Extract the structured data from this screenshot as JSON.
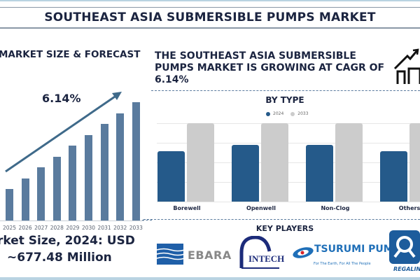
{
  "header": {
    "title": "SOUTHEAST ASIA SUBMERSIBLE PUMPS MARKET"
  },
  "left_panel": {
    "heading": "MARKET SIZE & FORECAST",
    "cagr_label": "6.14%",
    "market_size_line1": "rket Size, 2024: USD",
    "market_size_line2": "~677.48 Million",
    "colors": {
      "bar": "#5a7b9e",
      "arrow": "#3f6a8a"
    }
  },
  "right_panel": {
    "heading": "THE SOUTHEAST ASIA SUBMERSIBLE PUMPS MARKET IS GROWING AT CAGR OF 6.14%",
    "icon": "house-growth-icon",
    "by_type_title": "BY TYPE",
    "legend": [
      {
        "label": "2024",
        "color": "#255a8a"
      },
      {
        "label": "2033",
        "color": "#cccccc"
      }
    ],
    "key_players_title": "KEY PLAYERS",
    "key_players": [
      {
        "name": "EBARA"
      },
      {
        "name": "INTECH"
      },
      {
        "name": "TSURUMI PUMP",
        "tagline": "For The Earth, For All The People"
      },
      {
        "name": "REGALINE"
      }
    ]
  },
  "chart_data": [
    {
      "type": "bar",
      "title": "MARKET SIZE & FORECAST",
      "categories": [
        "2025",
        "2026",
        "2027",
        "2028",
        "2029",
        "2030",
        "2031",
        "2032",
        "2033"
      ],
      "values": [
        46,
        61,
        77,
        92,
        108,
        123,
        139,
        154,
        170
      ],
      "annotation": "6.14% CAGR arrow",
      "xlabel": "",
      "ylabel": "",
      "grid": false
    },
    {
      "type": "bar",
      "title": "BY TYPE",
      "categories": [
        "Borewell",
        "Openwell",
        "Non-Clog",
        "Others"
      ],
      "series": [
        {
          "name": "2024",
          "values": [
            64,
            72,
            72,
            64
          ]
        },
        {
          "name": "2033",
          "values": [
            100,
            100,
            100,
            100
          ]
        }
      ],
      "legend_position": "top",
      "grid": true
    }
  ]
}
